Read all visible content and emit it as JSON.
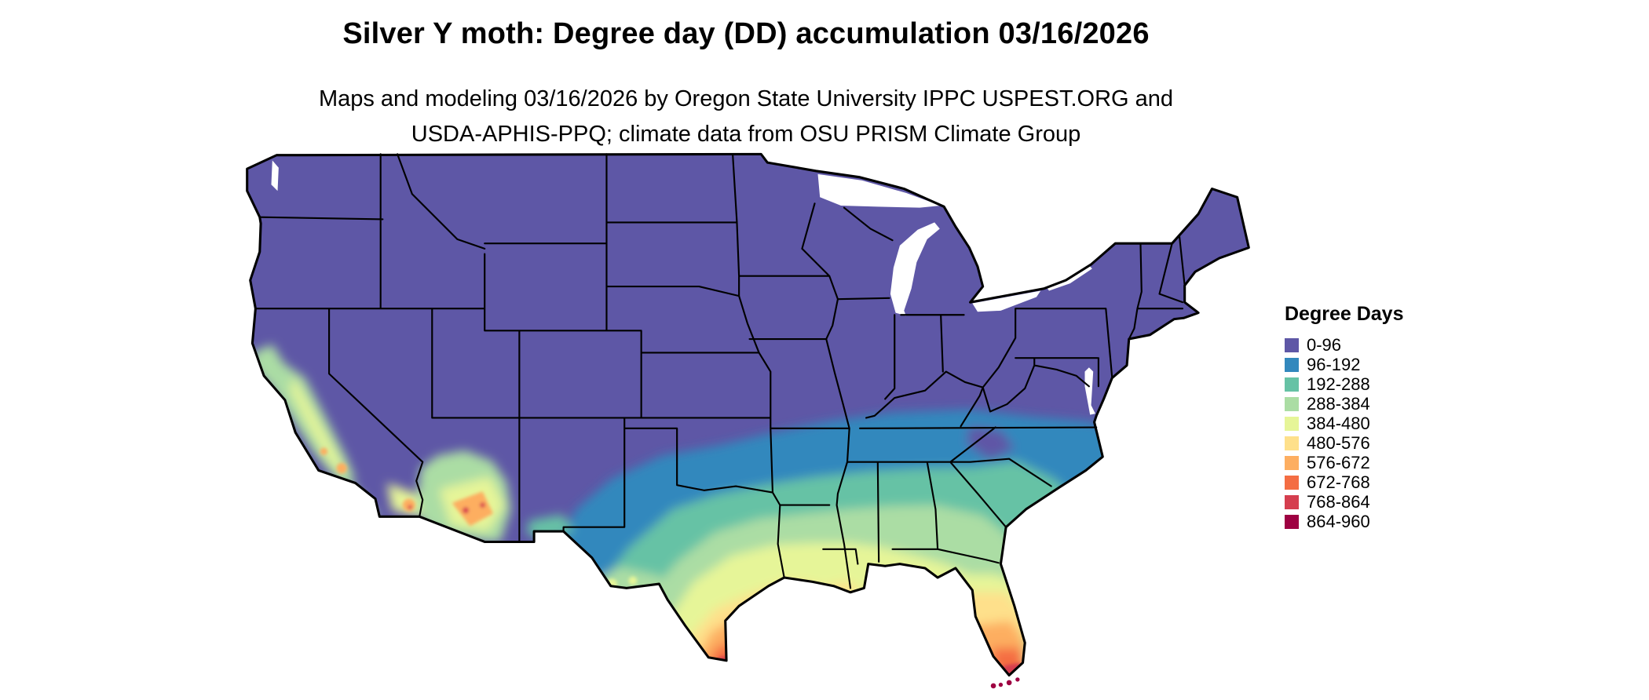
{
  "page": {
    "title": "Silver Y moth: Degree day (DD) accumulation 03/16/2026",
    "subtitle_line1": "Maps and modeling 03/16/2026 by Oregon State University IPPC USPEST.ORG and",
    "subtitle_line2": "USDA-APHIS-PPQ; climate data from OSU PRISM Climate Group",
    "background_color": "#ffffff"
  },
  "map": {
    "description": "Contiguous United States choropleth of accumulated degree days with state borders",
    "border_color": "#000000"
  },
  "legend": {
    "title": "Degree Days",
    "items": [
      {
        "label": "0-96",
        "color": "#5e57a6"
      },
      {
        "label": "96-192",
        "color": "#3288bd"
      },
      {
        "label": "192-288",
        "color": "#66c2a5"
      },
      {
        "label": "288-384",
        "color": "#abdda4"
      },
      {
        "label": "384-480",
        "color": "#e6f598"
      },
      {
        "label": "480-576",
        "color": "#fee08b"
      },
      {
        "label": "576-672",
        "color": "#fdae61"
      },
      {
        "label": "672-768",
        "color": "#f46d43"
      },
      {
        "label": "768-864",
        "color": "#d53e4f"
      },
      {
        "label": "864-960",
        "color": "#9e0142"
      }
    ]
  }
}
